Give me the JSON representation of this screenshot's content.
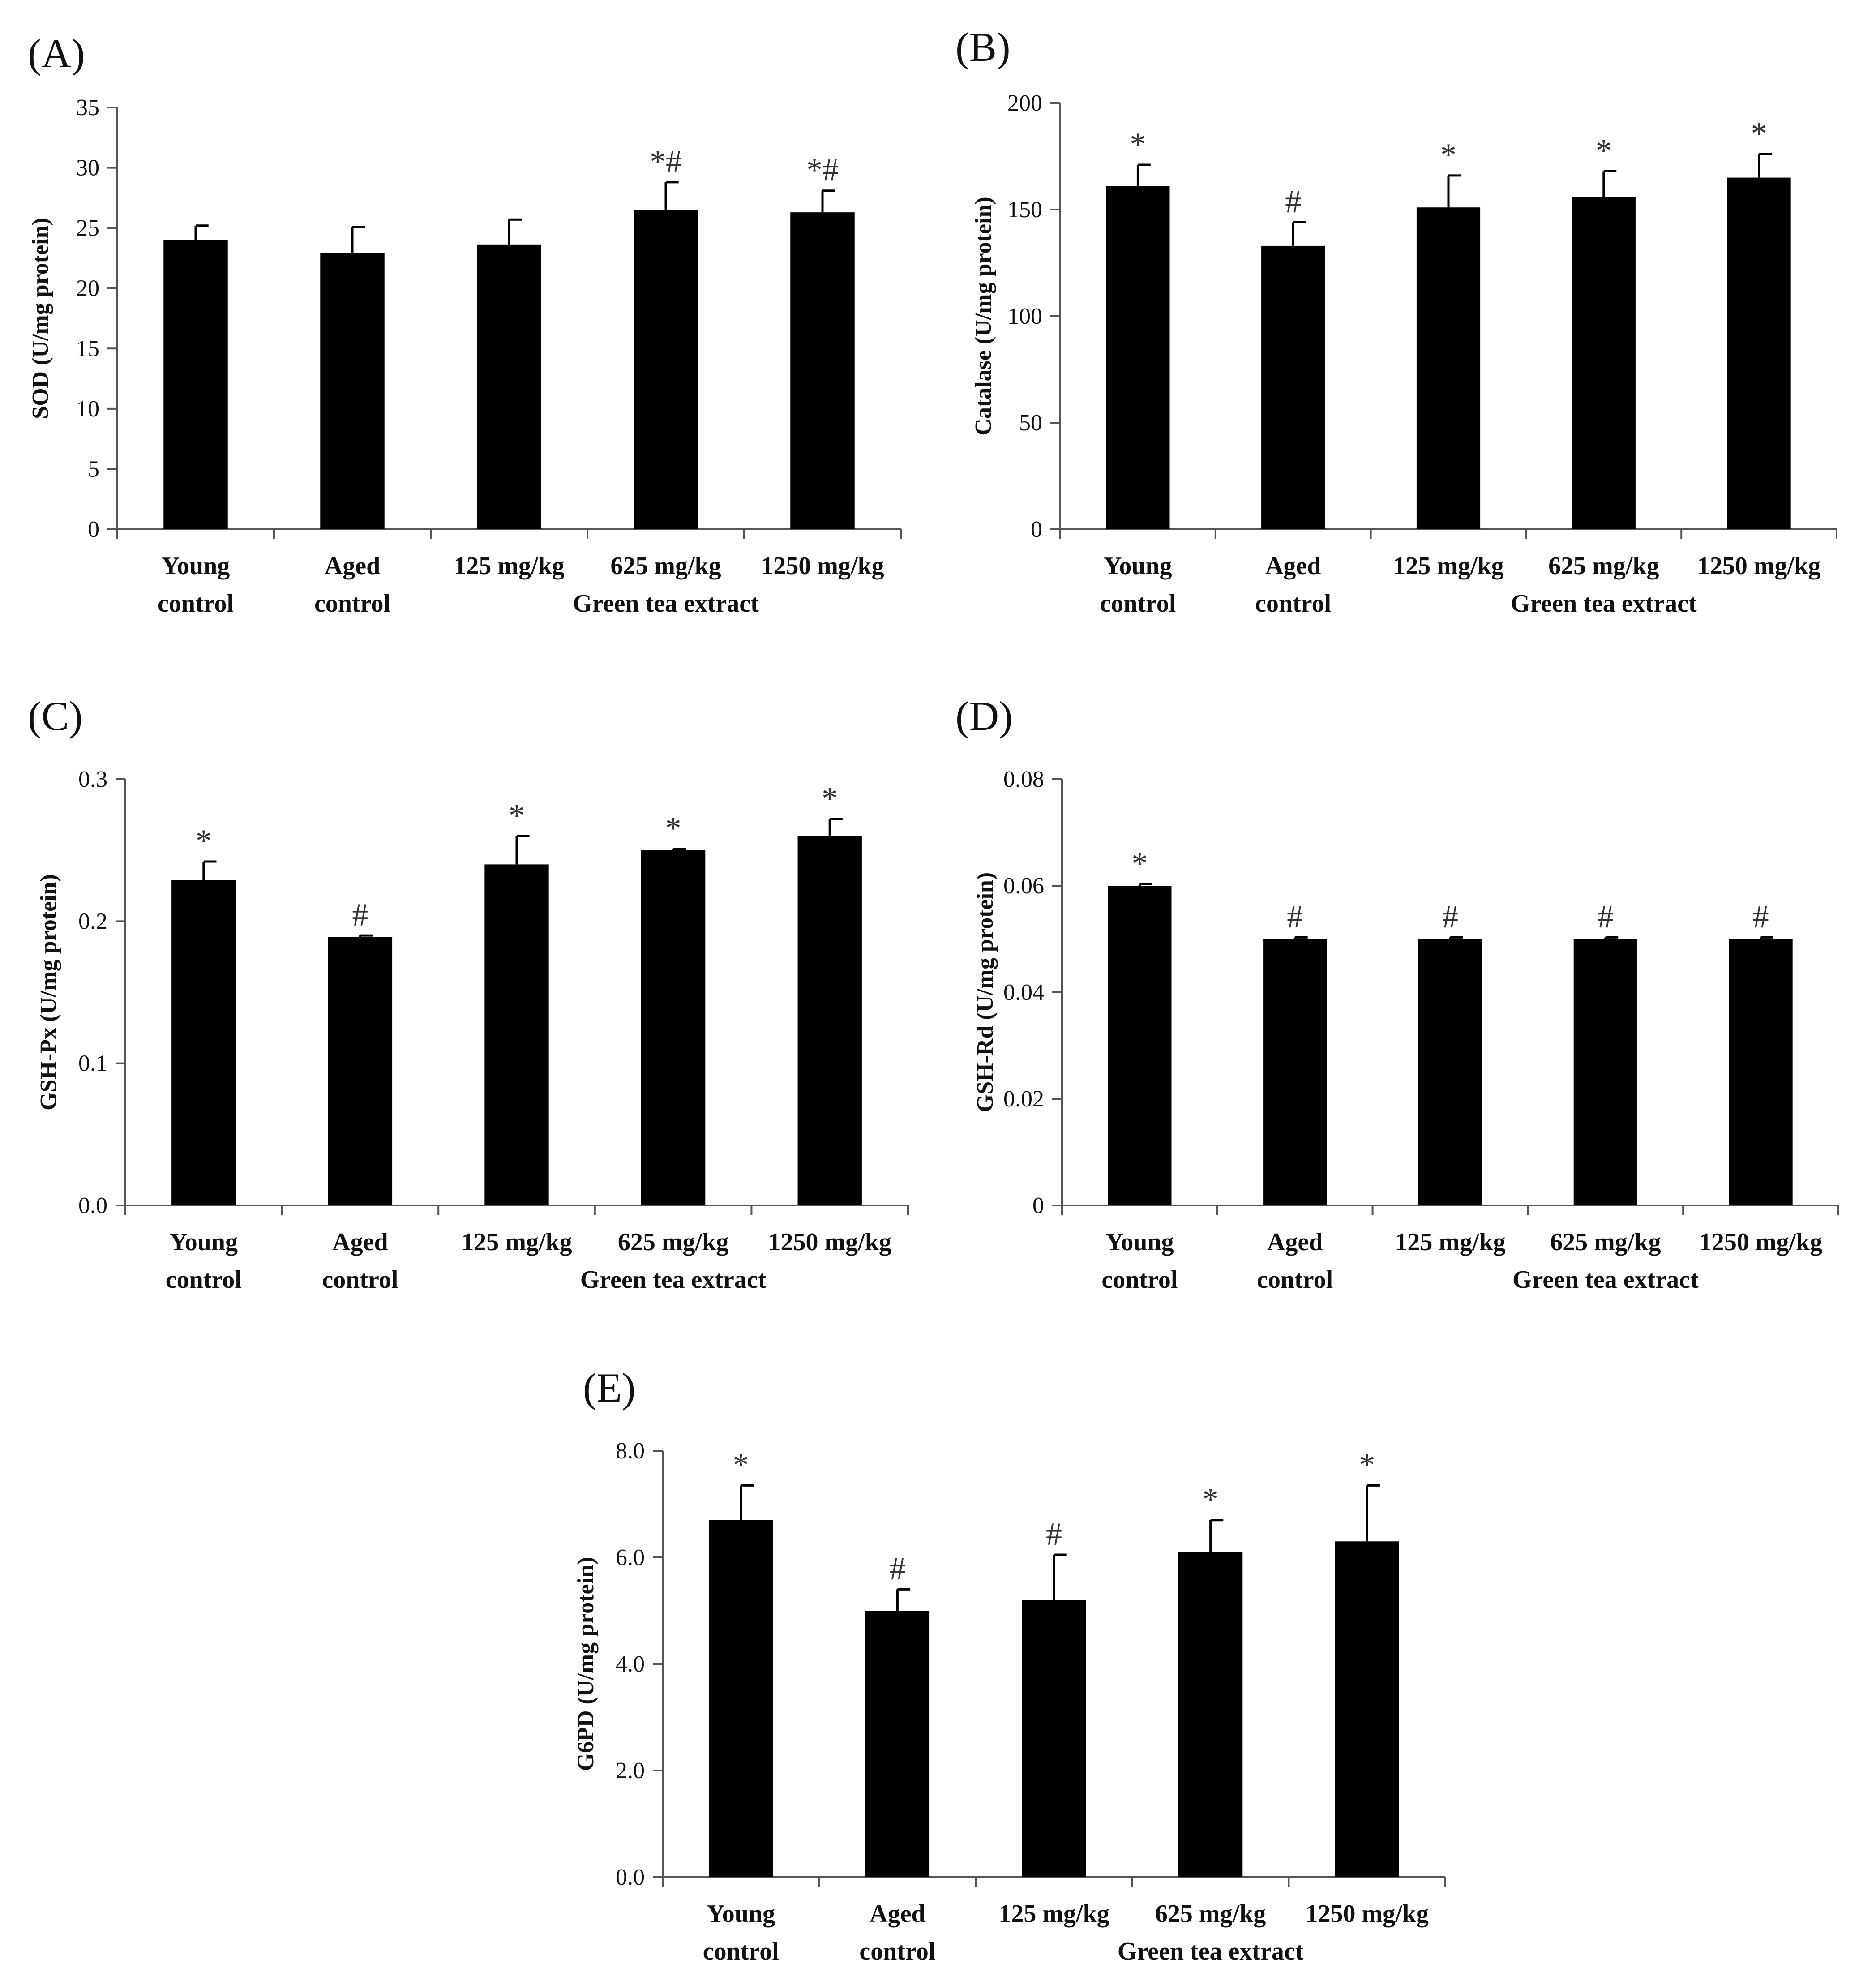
{
  "colors": {
    "bar": "#000000",
    "axis": "#555555",
    "text": "#111111",
    "marker": "#333333"
  },
  "chart_data": [
    {
      "panel": "(A)",
      "type": "bar",
      "categories": [
        "Young control",
        "Aged control",
        "125 mg/kg",
        "625 mg/kg",
        "1250 mg/kg"
      ],
      "category_lines": [
        [
          "Young",
          "control"
        ],
        [
          "Aged",
          "control"
        ],
        [
          "125 mg/kg"
        ],
        [
          "625 mg/kg"
        ],
        [
          "1250 mg/kg"
        ]
      ],
      "group_label": "Green tea extract",
      "values": [
        24.0,
        22.9,
        23.6,
        26.5,
        26.3
      ],
      "errors": [
        1.2,
        2.2,
        2.1,
        2.3,
        1.8
      ],
      "markers": [
        "",
        "",
        "",
        "*#",
        "*#"
      ],
      "ylabel": "SOD (U/mg protein)",
      "ylim": [
        0,
        35
      ],
      "yticks": [
        0,
        5,
        10,
        15,
        20,
        25,
        30,
        35
      ],
      "ytick_labels": [
        "0",
        "5",
        "10",
        "15",
        "20",
        "25",
        "30",
        "35"
      ]
    },
    {
      "panel": "(B)",
      "type": "bar",
      "categories": [
        "Young control",
        "Aged control",
        "125 mg/kg",
        "625 mg/kg",
        "1250 mg/kg"
      ],
      "category_lines": [
        [
          "Young",
          "control"
        ],
        [
          "Aged",
          "control"
        ],
        [
          "125 mg/kg"
        ],
        [
          "625 mg/kg"
        ],
        [
          "1250 mg/kg"
        ]
      ],
      "group_label": "Green tea extract",
      "values": [
        161,
        133,
        151,
        156,
        165
      ],
      "errors": [
        10,
        11,
        15,
        12,
        11
      ],
      "markers": [
        "*",
        "#",
        "*",
        "*",
        "*"
      ],
      "ylabel": "Catalase (U/mg protein)",
      "ylim": [
        0,
        200
      ],
      "yticks": [
        0,
        50,
        100,
        150,
        200
      ],
      "ytick_labels": [
        "0",
        "50",
        "100",
        "150",
        "200"
      ]
    },
    {
      "panel": "(C)",
      "type": "bar",
      "categories": [
        "Young control",
        "Aged control",
        "125 mg/kg",
        "625 mg/kg",
        "1250 mg/kg"
      ],
      "category_lines": [
        [
          "Young",
          "control"
        ],
        [
          "Aged",
          "control"
        ],
        [
          "125 mg/kg"
        ],
        [
          "625 mg/kg"
        ],
        [
          "1250 mg/kg"
        ]
      ],
      "group_label": "Green tea extract",
      "values": [
        0.229,
        0.189,
        0.24,
        0.25,
        0.26
      ],
      "errors": [
        0.013,
        0.001,
        0.02,
        0.001,
        0.012
      ],
      "markers": [
        "*",
        "#",
        "*",
        "*",
        "*"
      ],
      "ylabel": "GSH-Px (U/mg protein)",
      "ylim": [
        0,
        0.3
      ],
      "yticks": [
        0,
        0.1,
        0.2,
        0.3
      ],
      "ytick_labels": [
        "0.0",
        "0.1",
        "0.2",
        "0.3"
      ]
    },
    {
      "panel": "(D)",
      "type": "bar",
      "categories": [
        "Young control",
        "Aged control",
        "125 mg/kg",
        "625 mg/kg",
        "1250 mg/kg"
      ],
      "category_lines": [
        [
          "Young",
          "control"
        ],
        [
          "Aged",
          "control"
        ],
        [
          "125 mg/kg"
        ],
        [
          "625 mg/kg"
        ],
        [
          "1250 mg/kg"
        ]
      ],
      "group_label": "Green tea extract",
      "values": [
        0.06,
        0.05,
        0.05,
        0.05,
        0.05
      ],
      "errors": [
        0.0003,
        0.0003,
        0.0003,
        0.0003,
        0.0003
      ],
      "markers": [
        "*",
        "#",
        "#",
        "#",
        "#"
      ],
      "ylabel": "GSH-Rd (U/mg protein)",
      "ylim": [
        0,
        0.08
      ],
      "yticks": [
        0,
        0.02,
        0.04,
        0.06,
        0.08
      ],
      "ytick_labels": [
        "0",
        "0.02",
        "0.04",
        "0.06",
        "0.08"
      ]
    },
    {
      "panel": "(E)",
      "type": "bar",
      "categories": [
        "Young control",
        "Aged control",
        "125 mg/kg",
        "625 mg/kg",
        "1250 mg/kg"
      ],
      "category_lines": [
        [
          "Young",
          "control"
        ],
        [
          "Aged",
          "control"
        ],
        [
          "125 mg/kg"
        ],
        [
          "625 mg/kg"
        ],
        [
          "1250 mg/kg"
        ]
      ],
      "group_label": "Green tea extract",
      "values": [
        6.7,
        5.0,
        5.2,
        6.1,
        6.3
      ],
      "errors": [
        0.65,
        0.4,
        0.85,
        0.6,
        1.05
      ],
      "markers": [
        "*",
        "#",
        "#",
        "*",
        "*"
      ],
      "ylabel": "G6PD (U/mg protein)",
      "ylim": [
        0,
        8
      ],
      "yticks": [
        0,
        2,
        4,
        6,
        8
      ],
      "ytick_labels": [
        "0.0",
        "2.0",
        "4.0",
        "6.0",
        "8.0"
      ]
    }
  ]
}
